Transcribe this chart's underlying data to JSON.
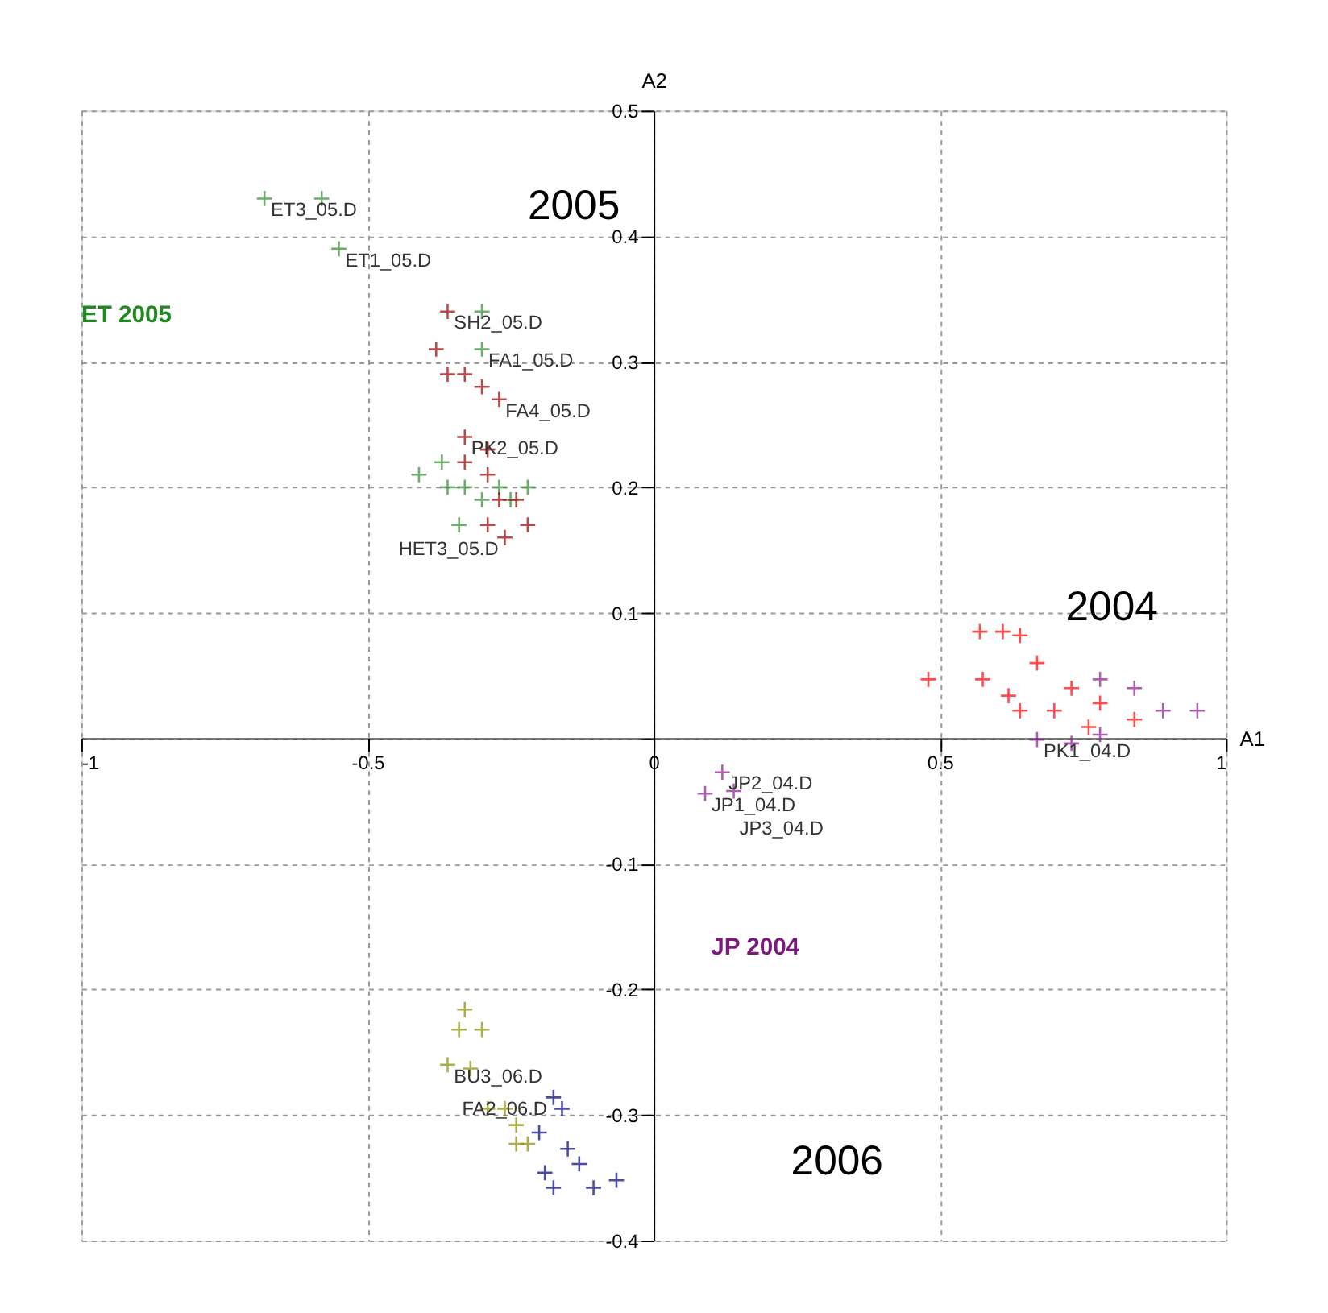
{
  "chart_data": {
    "type": "scatter",
    "xlabel": "A1",
    "ylabel": "A2",
    "xlim": [
      -1,
      1
    ],
    "ylim": [
      -0.4,
      0.5
    ],
    "xticks": [
      {
        "value": -1,
        "label": "-1"
      },
      -0.5,
      {
        "value": 0,
        "label": "0"
      },
      0.5,
      {
        "value": 1,
        "label": "1"
      }
    ],
    "yticks": [
      {
        "value": -0.4,
        "label": "-0.4"
      },
      {
        "value": -0.3,
        "label": "-0.3"
      },
      {
        "value": -0.2,
        "label": "-0.2"
      },
      {
        "value": -0.1,
        "label": "-0.1"
      },
      {
        "value": 0,
        "label": null
      },
      {
        "value": 0.1,
        "label": "0.1"
      },
      {
        "value": 0.2,
        "label": "0.2"
      },
      {
        "value": 0.3,
        "label": "0.3"
      },
      {
        "value": 0.4,
        "label": "0.4"
      },
      {
        "value": 0.5,
        "label": "0.5"
      }
    ],
    "grid": true,
    "marker": "cross",
    "legend": false,
    "series": [
      {
        "color": "#2e8b2e",
        "x": [
          -0.68,
          -0.58,
          -0.55,
          -0.3,
          -0.3,
          -0.41,
          -0.37,
          -0.36,
          -0.33,
          -0.3,
          -0.27,
          -0.34,
          -0.25,
          -0.22
        ],
        "values": [
          0.43,
          0.43,
          0.39,
          0.34,
          0.31,
          0.21,
          0.22,
          0.2,
          0.2,
          0.19,
          0.2,
          0.17,
          0.19,
          0.2
        ]
      },
      {
        "color": "#990000",
        "x": [
          -0.36,
          -0.38,
          -0.36,
          -0.33,
          -0.3,
          -0.27,
          -0.33,
          -0.29,
          -0.33,
          -0.29,
          -0.27,
          -0.24,
          -0.29,
          -0.26,
          -0.22
        ],
        "values": [
          0.34,
          0.31,
          0.29,
          0.29,
          0.28,
          0.27,
          0.24,
          0.23,
          0.22,
          0.21,
          0.19,
          0.19,
          0.17,
          0.16,
          0.17
        ]
      },
      {
        "color": "#ff0000",
        "x": [
          0.57,
          0.61,
          0.64,
          0.48,
          0.575,
          0.67,
          0.62,
          0.64,
          0.7,
          0.73,
          0.78,
          0.76,
          0.84
        ],
        "values": [
          0.085,
          0.085,
          0.082,
          0.047,
          0.047,
          0.06,
          0.034,
          0.022,
          0.022,
          0.04,
          0.028,
          0.009,
          0.015
        ]
      },
      {
        "color": "#8b1a8b",
        "x": [
          0.78,
          0.84,
          0.89,
          0.67,
          0.73,
          0.78,
          0.95,
          0.12,
          0.09,
          0.14
        ],
        "values": [
          0.047,
          0.04,
          0.022,
          -0.001,
          -0.004,
          0.003,
          0.022,
          -0.027,
          -0.044,
          -0.042
        ]
      },
      {
        "color": "#8b8b00",
        "x": [
          -0.33,
          -0.34,
          -0.3,
          -0.36,
          -0.32,
          -0.29,
          -0.26,
          -0.24,
          -0.22,
          -0.24
        ],
        "values": [
          -0.216,
          -0.232,
          -0.232,
          -0.26,
          -0.263,
          -0.295,
          -0.295,
          -0.308,
          -0.323,
          -0.323
        ]
      },
      {
        "color": "#000080",
        "x": [
          -0.175,
          -0.16,
          -0.2,
          -0.15,
          -0.19,
          -0.13,
          -0.175,
          -0.105,
          -0.065
        ],
        "values": [
          -0.286,
          -0.295,
          -0.314,
          -0.327,
          -0.346,
          -0.339,
          -0.358,
          -0.358,
          -0.352
        ]
      }
    ],
    "annotations": [
      "2005",
      "2004",
      "2006",
      "ET 2005",
      "JP 2004",
      "JP3_04.D",
      {
        "text": "ET3_05.D",
        "x": -0.68,
        "y": 0.43
      },
      {
        "text": "ET1_05.D",
        "x": -0.55,
        "y": 0.39
      },
      {
        "text": "SH2_05.D",
        "x": -0.36,
        "y": 0.34
      },
      {
        "text": "FA1_05.D",
        "x": -0.3,
        "y": 0.31
      },
      {
        "text": "FA4_05.D",
        "x": -0.27,
        "y": 0.27
      },
      {
        "text": "PK2_05.D",
        "x": -0.33,
        "y": 0.24
      },
      {
        "text": "HET3_05.D",
        "x": -0.26,
        "y": 0.16
      },
      {
        "text": "PK1_04.D",
        "x": 0.67,
        "y": -0.001
      },
      {
        "text": "JP2_04.D",
        "x": 0.12,
        "y": -0.027
      },
      {
        "text": "JP1_04.D",
        "x": 0.09,
        "y": -0.044
      },
      {
        "text": "BU3_06.D",
        "x": -0.36,
        "y": -0.26
      },
      {
        "text": "FA2_06.D",
        "x": -0.175,
        "y": -0.286
      }
    ]
  }
}
